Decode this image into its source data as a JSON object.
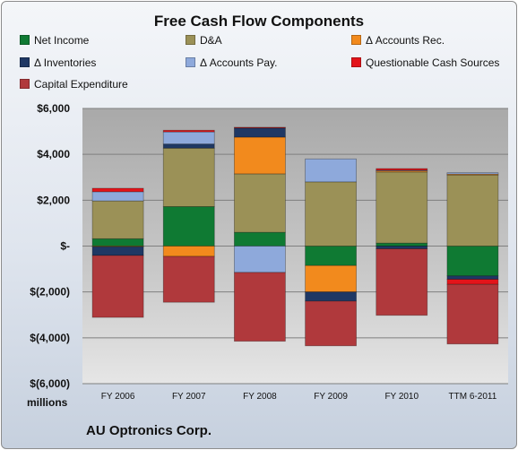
{
  "chart_data": {
    "type": "bar",
    "stacked": true,
    "title": "Free Cash Flow Components",
    "xlabel": "",
    "ylabel": "millions",
    "ylim": [
      -6000,
      6000
    ],
    "yticks": [
      6000,
      4000,
      2000,
      0,
      -2000,
      -4000,
      -6000
    ],
    "ytick_labels": [
      "$6,000",
      "$4,000",
      "$2,000",
      "$-",
      "$(2,000)",
      "$(4,000)",
      "$(6,000)"
    ],
    "grid": true,
    "legend_position": "top",
    "categories": [
      "FY 2006",
      "FY 2007",
      "FY 2008",
      "FY 2009",
      "FY 2010",
      "TTM 6-2011"
    ],
    "series": [
      {
        "name": "Net Income",
        "color": "#0f7a33",
        "values": [
          320,
          1720,
          600,
          -850,
          130,
          -1300
        ]
      },
      {
        "name": "D&A",
        "color": "#9b9157",
        "values": [
          1650,
          2550,
          2550,
          2800,
          3100,
          3100
        ]
      },
      {
        "name": "Δ Accounts Rec.",
        "color": "#f28a1d",
        "values": [
          -30,
          -450,
          1600,
          -1150,
          50,
          40
        ]
      },
      {
        "name": "Δ Inventories",
        "color": "#1f3864",
        "values": [
          -380,
          180,
          400,
          -400,
          -120,
          -150
        ]
      },
      {
        "name": "Δ Accounts Pay.",
        "color": "#8ea9db",
        "values": [
          400,
          530,
          -1150,
          1000,
          30,
          60
        ]
      },
      {
        "name": "Questionable Cash Sources",
        "color": "#e3141a",
        "values": [
          150,
          70,
          30,
          0,
          70,
          -220
        ]
      },
      {
        "name": "Capital Expenditure",
        "color": "#b0393c",
        "values": [
          -2700,
          -2000,
          -3000,
          -1950,
          -2900,
          -2600
        ]
      }
    ]
  },
  "footer": {
    "units_label": "millions",
    "company": "AU Optronics Corp."
  }
}
